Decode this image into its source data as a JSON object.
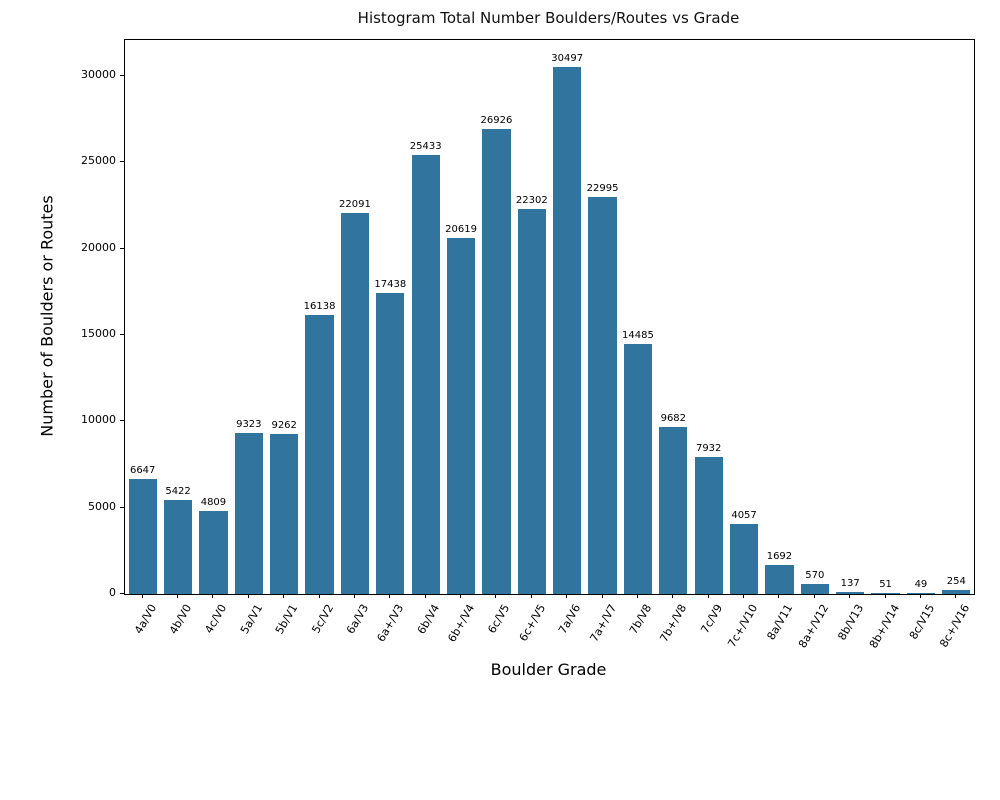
{
  "chart_data": {
    "type": "bar",
    "title": "Histogram Total Number Boulders/Routes vs Grade",
    "xlabel": "Boulder Grade",
    "ylabel": "Number of Boulders or Routes",
    "categories": [
      "4a/V0",
      "4b/V0",
      "4c/V0",
      "5a/V1",
      "5b/V1",
      "5c/V2",
      "6a/V3",
      "6a+/V3",
      "6b/V4",
      "6b+/V4",
      "6c/V5",
      "6c+/V5",
      "7a/V6",
      "7a+/V7",
      "7b/V8",
      "7b+/V8",
      "7c/V9",
      "7c+/V10",
      "8a/V11",
      "8a+/V12",
      "8b/V13",
      "8b+/V14",
      "8c/V15",
      "8c+/V16"
    ],
    "values": [
      6647,
      5422,
      4809,
      9323,
      9262,
      16138,
      22091,
      17438,
      25433,
      20619,
      26926,
      22302,
      30497,
      22995,
      14485,
      9682,
      7932,
      4057,
      1692,
      570,
      137,
      51,
      49,
      254
    ],
    "bar_labels": [
      "6647",
      "5422",
      "4809",
      "9323",
      "9262",
      "16138",
      "22091",
      "17438",
      "25433",
      "20619",
      "26926",
      "22302",
      "30497",
      "22995",
      "14485",
      "9682",
      "7932",
      "4057",
      "1692",
      "570",
      "137",
      "51",
      "49",
      "254"
    ],
    "yticks": [
      0,
      5000,
      10000,
      15000,
      20000,
      25000,
      30000
    ],
    "ytick_labels": [
      "0",
      "5000",
      "10000",
      "15000",
      "20000",
      "25000",
      "30000"
    ],
    "ylim": [
      0,
      32085
    ],
    "grid": false,
    "legend": null,
    "bar_color": "#31749e",
    "x_tick_rotation_deg": 60
  }
}
